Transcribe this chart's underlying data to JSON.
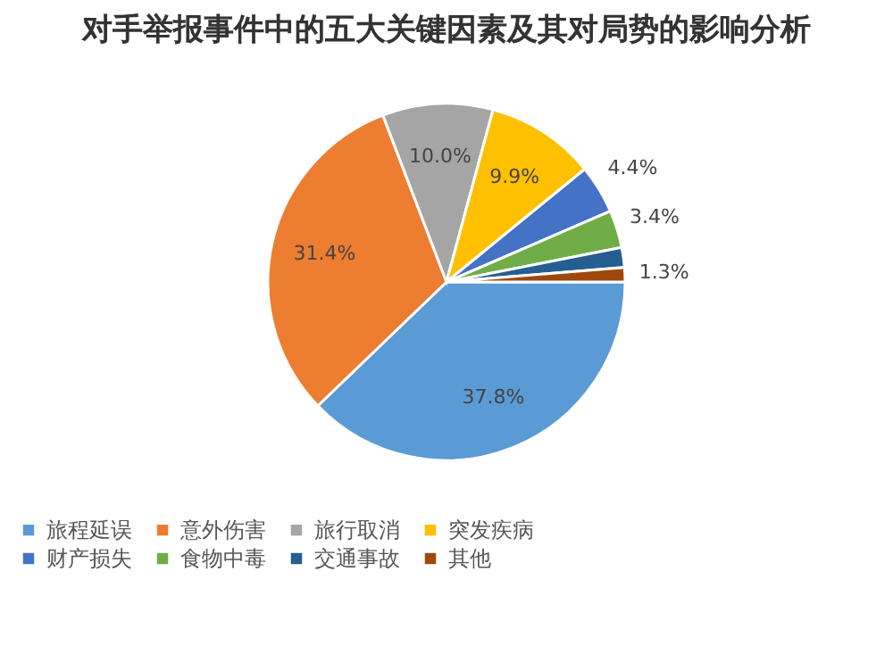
{
  "chart_data": {
    "type": "pie",
    "title": "对手举报事件中的五大关键因素及其对局势的影响分析",
    "categories": [
      "旅程延误",
      "意外伤害",
      "旅行取消",
      "突发疾病",
      "财产损失",
      "食物中毒",
      "交通事故",
      "其他"
    ],
    "values": [
      37.8,
      31.4,
      10.0,
      9.9,
      4.4,
      3.4,
      1.8,
      1.3
    ],
    "colors": [
      "#5b9bd5",
      "#ed7d31",
      "#a5a5a5",
      "#ffc000",
      "#4472c4",
      "#70ad47",
      "#255e91",
      "#9e480e"
    ],
    "value_labels": [
      "37.8%",
      "31.4%",
      "10.0%",
      "9.9%",
      "4.4%",
      "3.4%",
      null,
      "1.3%"
    ],
    "legend": "bottom"
  }
}
